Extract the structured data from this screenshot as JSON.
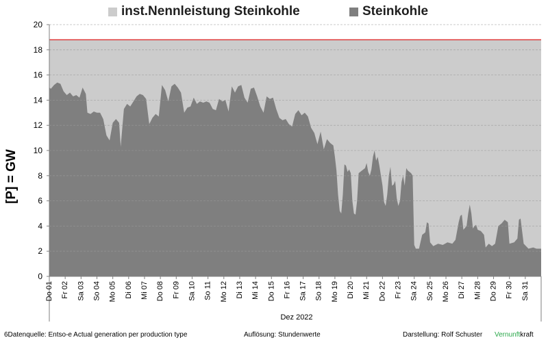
{
  "chart_data": {
    "type": "area",
    "ylabel": "[P]  =  GW",
    "xlabel": "Dez 2022",
    "ylim": [
      0,
      20
    ],
    "yticks": [
      0,
      2,
      4,
      6,
      8,
      10,
      12,
      14,
      16,
      18,
      20
    ],
    "grid": true,
    "legend_position": "top",
    "x_ticks": [
      "Do 01",
      "Fr 02",
      "Sa 03",
      "So 04",
      "Mo 05",
      "Di 06",
      "Mi 07",
      "Do 08",
      "Fr 09",
      "Sa 10",
      "So 11",
      "Mo 12",
      "Di 13",
      "Mi 14",
      "Do 15",
      "Fr 16",
      "Sa 17",
      "So 18",
      "Mo 19",
      "Di 20",
      "Mi 21",
      "Do 22",
      "Fr 23",
      "Sa 24",
      "So 25",
      "Mo 26",
      "Di 27",
      "Mi 28",
      "Do 29",
      "Fr 30",
      "Sa 31"
    ],
    "x_day_range": [
      1,
      32
    ],
    "series": [
      {
        "name": "inst.Nennleistung Steinkohle",
        "color": "#cccccc",
        "line_color": "#e03030",
        "value": 18.8
      },
      {
        "name": "Steinkohle",
        "color": "#7f7f7f",
        "points": [
          [
            1.0,
            15.0
          ],
          [
            1.1,
            14.9
          ],
          [
            1.3,
            15.2
          ],
          [
            1.5,
            15.4
          ],
          [
            1.7,
            15.3
          ],
          [
            1.9,
            14.7
          ],
          [
            2.1,
            14.4
          ],
          [
            2.3,
            14.6
          ],
          [
            2.5,
            14.3
          ],
          [
            2.7,
            14.4
          ],
          [
            2.9,
            14.2
          ],
          [
            3.1,
            15.0
          ],
          [
            3.3,
            14.5
          ],
          [
            3.4,
            13.0
          ],
          [
            3.6,
            12.9
          ],
          [
            3.8,
            13.1
          ],
          [
            4.0,
            13.0
          ],
          [
            4.2,
            13.0
          ],
          [
            4.4,
            12.5
          ],
          [
            4.6,
            11.2
          ],
          [
            4.8,
            10.8
          ],
          [
            5.0,
            12.2
          ],
          [
            5.2,
            12.5
          ],
          [
            5.4,
            12.2
          ],
          [
            5.5,
            10.3
          ],
          [
            5.7,
            13.3
          ],
          [
            5.9,
            13.7
          ],
          [
            6.1,
            13.5
          ],
          [
            6.3,
            13.9
          ],
          [
            6.5,
            14.3
          ],
          [
            6.7,
            14.5
          ],
          [
            6.9,
            14.4
          ],
          [
            7.1,
            14.1
          ],
          [
            7.3,
            12.1
          ],
          [
            7.5,
            12.6
          ],
          [
            7.7,
            12.9
          ],
          [
            7.9,
            12.7
          ],
          [
            8.1,
            15.2
          ],
          [
            8.3,
            14.8
          ],
          [
            8.5,
            13.9
          ],
          [
            8.7,
            15.1
          ],
          [
            8.9,
            15.3
          ],
          [
            9.1,
            15.0
          ],
          [
            9.3,
            14.6
          ],
          [
            9.5,
            13.0
          ],
          [
            9.7,
            13.4
          ],
          [
            9.9,
            13.5
          ],
          [
            10.1,
            14.2
          ],
          [
            10.3,
            13.7
          ],
          [
            10.5,
            13.9
          ],
          [
            10.7,
            13.8
          ],
          [
            10.9,
            13.9
          ],
          [
            11.1,
            13.8
          ],
          [
            11.3,
            13.3
          ],
          [
            11.5,
            13.2
          ],
          [
            11.7,
            14.1
          ],
          [
            11.9,
            13.9
          ],
          [
            12.1,
            14.0
          ],
          [
            12.3,
            13.1
          ],
          [
            12.5,
            15.1
          ],
          [
            12.7,
            14.6
          ],
          [
            12.9,
            15.1
          ],
          [
            13.1,
            15.2
          ],
          [
            13.3,
            14.2
          ],
          [
            13.5,
            13.8
          ],
          [
            13.7,
            14.9
          ],
          [
            13.9,
            15.0
          ],
          [
            14.1,
            14.3
          ],
          [
            14.3,
            13.5
          ],
          [
            14.5,
            13.0
          ],
          [
            14.7,
            14.3
          ],
          [
            14.9,
            14.1
          ],
          [
            15.1,
            14.2
          ],
          [
            15.3,
            13.3
          ],
          [
            15.5,
            12.6
          ],
          [
            15.7,
            12.4
          ],
          [
            15.9,
            12.5
          ],
          [
            16.1,
            12.1
          ],
          [
            16.3,
            11.9
          ],
          [
            16.5,
            12.9
          ],
          [
            16.7,
            13.2
          ],
          [
            16.9,
            12.8
          ],
          [
            17.1,
            13.0
          ],
          [
            17.3,
            12.7
          ],
          [
            17.5,
            11.8
          ],
          [
            17.7,
            11.4
          ],
          [
            17.9,
            10.5
          ],
          [
            18.1,
            11.5
          ],
          [
            18.3,
            10.1
          ],
          [
            18.5,
            10.9
          ],
          [
            18.7,
            10.6
          ],
          [
            18.9,
            10.4
          ],
          [
            19.0,
            9.5
          ],
          [
            19.1,
            8.4
          ],
          [
            19.2,
            6.5
          ],
          [
            19.3,
            5.2
          ],
          [
            19.4,
            5.0
          ],
          [
            19.5,
            6.5
          ],
          [
            19.6,
            8.9
          ],
          [
            19.7,
            8.8
          ],
          [
            19.8,
            8.3
          ],
          [
            19.9,
            8.5
          ],
          [
            20.0,
            8.2
          ],
          [
            20.1,
            6.0
          ],
          [
            20.2,
            5.0
          ],
          [
            20.3,
            4.9
          ],
          [
            20.4,
            6.0
          ],
          [
            20.5,
            8.2
          ],
          [
            20.7,
            8.4
          ],
          [
            20.9,
            8.6
          ],
          [
            21.0,
            9.0
          ],
          [
            21.1,
            8.3
          ],
          [
            21.2,
            8.0
          ],
          [
            21.3,
            8.5
          ],
          [
            21.4,
            9.5
          ],
          [
            21.5,
            10.0
          ],
          [
            21.6,
            9.2
          ],
          [
            21.7,
            9.5
          ],
          [
            21.8,
            8.8
          ],
          [
            21.9,
            8.0
          ],
          [
            22.0,
            7.2
          ],
          [
            22.1,
            5.9
          ],
          [
            22.2,
            5.6
          ],
          [
            22.3,
            6.5
          ],
          [
            22.4,
            8.0
          ],
          [
            22.5,
            8.7
          ],
          [
            22.6,
            7.2
          ],
          [
            22.7,
            7.3
          ],
          [
            22.8,
            7.6
          ],
          [
            22.9,
            6.2
          ],
          [
            23.0,
            5.6
          ],
          [
            23.1,
            6.0
          ],
          [
            23.2,
            7.5
          ],
          [
            23.3,
            8.0
          ],
          [
            23.4,
            7.2
          ],
          [
            23.5,
            8.6
          ],
          [
            23.6,
            8.4
          ],
          [
            23.7,
            8.3
          ],
          [
            23.8,
            8.2
          ],
          [
            23.9,
            8.0
          ],
          [
            24.0,
            2.5
          ],
          [
            24.1,
            2.2
          ],
          [
            24.3,
            2.2
          ],
          [
            24.5,
            3.3
          ],
          [
            24.7,
            3.5
          ],
          [
            24.8,
            4.3
          ],
          [
            24.9,
            4.2
          ],
          [
            25.0,
            2.7
          ],
          [
            25.2,
            2.4
          ],
          [
            25.5,
            2.6
          ],
          [
            25.8,
            2.5
          ],
          [
            26.1,
            2.7
          ],
          [
            26.4,
            2.6
          ],
          [
            26.6,
            2.9
          ],
          [
            26.8,
            4.3
          ],
          [
            26.9,
            4.8
          ],
          [
            27.0,
            4.9
          ],
          [
            27.1,
            3.7
          ],
          [
            27.3,
            4.0
          ],
          [
            27.4,
            5.0
          ],
          [
            27.5,
            5.7
          ],
          [
            27.6,
            5.0
          ],
          [
            27.7,
            3.8
          ],
          [
            27.8,
            4.0
          ],
          [
            27.9,
            4.1
          ],
          [
            28.0,
            3.7
          ],
          [
            28.2,
            3.6
          ],
          [
            28.4,
            3.3
          ],
          [
            28.5,
            2.3
          ],
          [
            28.7,
            2.6
          ],
          [
            28.9,
            2.4
          ],
          [
            29.1,
            2.6
          ],
          [
            29.3,
            4.0
          ],
          [
            29.5,
            4.2
          ],
          [
            29.7,
            4.5
          ],
          [
            29.9,
            4.3
          ],
          [
            30.0,
            2.6
          ],
          [
            30.3,
            2.7
          ],
          [
            30.5,
            3.0
          ],
          [
            30.6,
            4.5
          ],
          [
            30.7,
            4.6
          ],
          [
            30.8,
            3.6
          ],
          [
            30.9,
            2.6
          ],
          [
            31.2,
            2.2
          ],
          [
            31.5,
            2.3
          ],
          [
            31.7,
            2.2
          ],
          [
            32.0,
            2.2
          ]
        ]
      }
    ]
  },
  "footer": {
    "source": "6Datenquelle: Entso-e  Actual generation per production type",
    "resolution": "Auflösung: Stundenwerte",
    "author": "Darstellung:  Rolf Schuster",
    "brand_part1": "Vernunft",
    "brand_part2": "kraft"
  }
}
